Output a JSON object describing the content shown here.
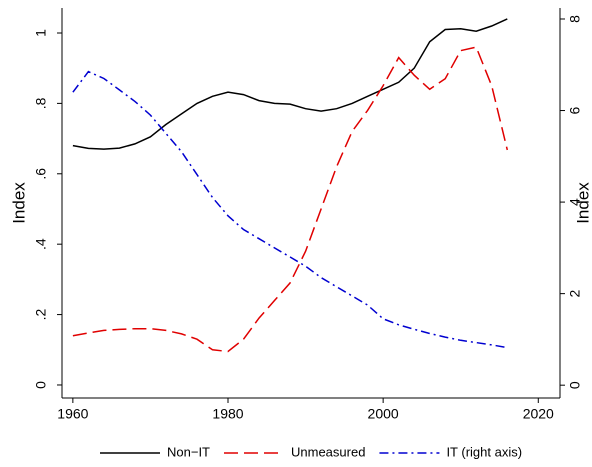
{
  "chart_data": {
    "type": "line",
    "ylabel": "Index",
    "y2label": "Index",
    "x": [
      1960,
      1962,
      1964,
      1966,
      1968,
      1970,
      1972,
      1974,
      1976,
      1978,
      1980,
      1982,
      1984,
      1986,
      1988,
      1990,
      1992,
      1994,
      1996,
      1998,
      2000,
      2002,
      2004,
      2006,
      2008,
      2010,
      2012,
      2014,
      2016
    ],
    "series": [
      {
        "name": "Non−IT",
        "color": "#000000",
        "style": "solid",
        "values": [
          0.68,
          0.672,
          0.67,
          0.673,
          0.685,
          0.705,
          0.74,
          0.77,
          0.8,
          0.82,
          0.832,
          0.825,
          0.808,
          0.8,
          0.798,
          0.785,
          0.778,
          0.785,
          0.8,
          0.82,
          0.84,
          0.86,
          0.9,
          0.975,
          1.01,
          1.012,
          1.005,
          1.02,
          1.04
        ]
      },
      {
        "name": "Unmeasured",
        "color": "#e00000",
        "style": "dash",
        "values": [
          0.14,
          0.148,
          0.155,
          0.158,
          0.16,
          0.16,
          0.155,
          0.145,
          0.13,
          0.1,
          0.095,
          0.13,
          0.19,
          0.24,
          0.29,
          0.38,
          0.5,
          0.62,
          0.72,
          0.78,
          0.85,
          0.93,
          0.88,
          0.84,
          0.87,
          0.95,
          0.96,
          0.85,
          0.668
        ]
      },
      {
        "name": "IT (right axis)",
        "color": "#0000d0",
        "style": "dashdot",
        "axis": "y2",
        "values": [
          6.4,
          6.85,
          6.7,
          6.45,
          6.2,
          5.9,
          5.5,
          5.1,
          4.6,
          4.1,
          3.7,
          3.4,
          3.2,
          3.0,
          2.8,
          2.6,
          2.35,
          2.15,
          1.95,
          1.75,
          1.45,
          1.32,
          1.22,
          1.13,
          1.05,
          0.98,
          0.93,
          0.88,
          0.82
        ]
      }
    ],
    "xlim": [
      1958.6,
      2022.8
    ],
    "xticks": [
      1960,
      1980,
      2000,
      2020
    ],
    "ylim": [
      -0.037,
      1.071
    ],
    "yticks": [
      0,
      {
        "value": 0.2,
        "label": ".2"
      },
      {
        "value": 0.4,
        "label": ".4"
      },
      {
        "value": 0.6,
        "label": ".6"
      },
      {
        "value": 0.8,
        "label": ".8"
      },
      1
    ],
    "y2lim": [
      -0.28,
      8.24
    ],
    "y2ticks": [
      0,
      2,
      4,
      6,
      8
    ],
    "legend": "bottom"
  }
}
